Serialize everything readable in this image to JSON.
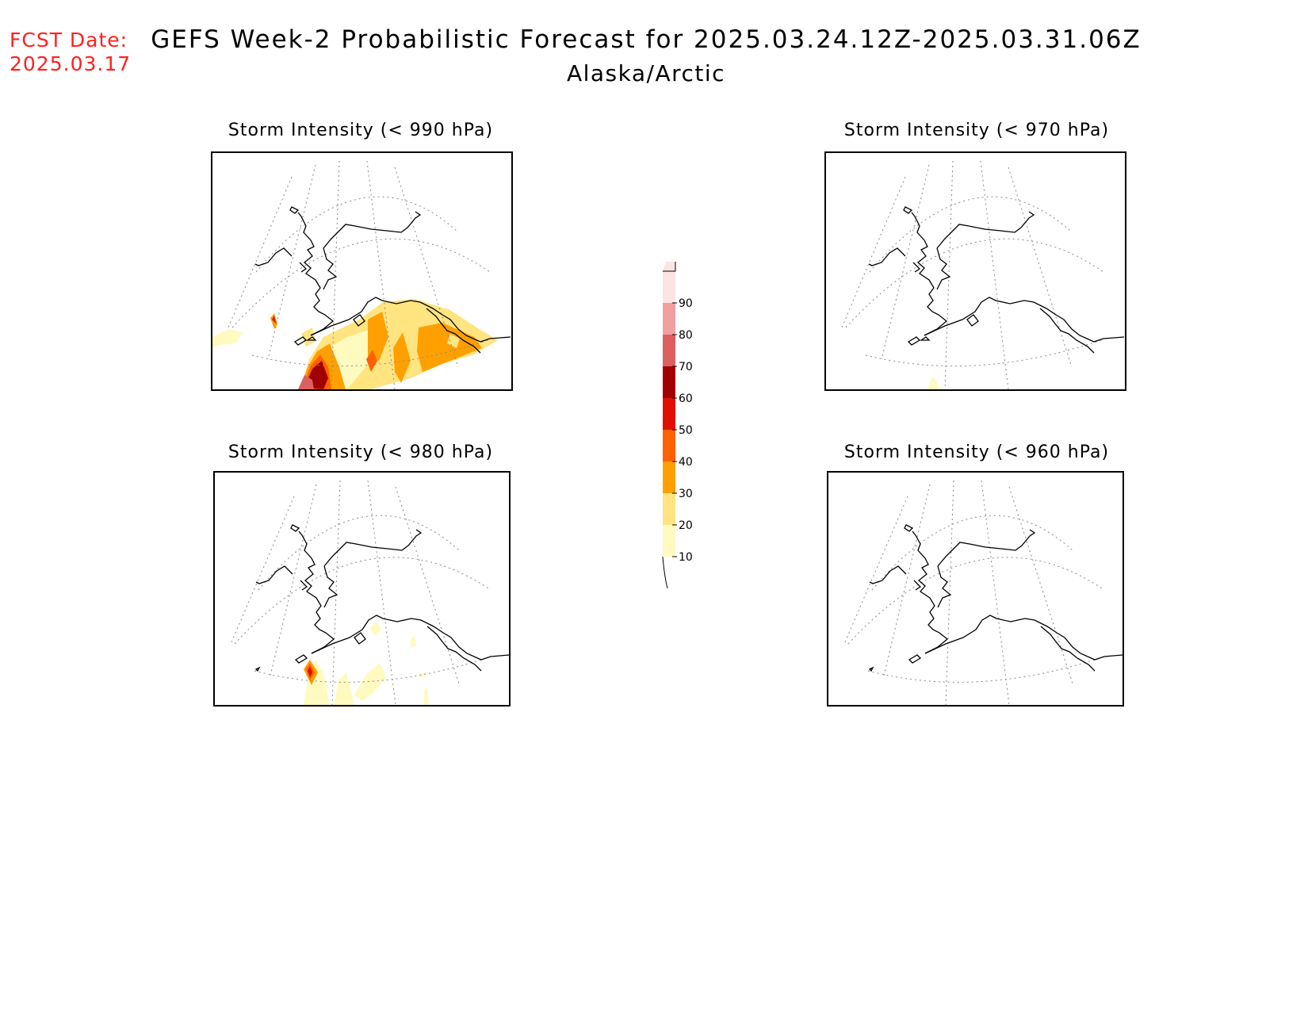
{
  "header": {
    "fcst_label": "FCST Date:",
    "fcst_date": "2025.03.17",
    "title": "GEFS Week-2 Probabilistic Forecast for 2025.03.24.12Z-2025.03.31.06Z",
    "region": "Alaska/Arctic"
  },
  "panels": [
    {
      "id": "p990",
      "title": "Storm Intensity (< 990 hPa)"
    },
    {
      "id": "p970",
      "title": "Storm Intensity (< 970 hPa)"
    },
    {
      "id": "p980",
      "title": "Storm Intensity (< 980 hPa)"
    },
    {
      "id": "p960",
      "title": "Storm Intensity (< 960 hPa)"
    }
  ],
  "legend": {
    "levels": [
      "10",
      "20",
      "30",
      "40",
      "50",
      "60",
      "70",
      "80",
      "90"
    ],
    "colors": [
      "#fffac0",
      "#ffe480",
      "#ffa000",
      "#ff6000",
      "#e01000",
      "#a00000",
      "#dc6060",
      "#f0a0a0",
      "#fce4e4"
    ]
  }
}
